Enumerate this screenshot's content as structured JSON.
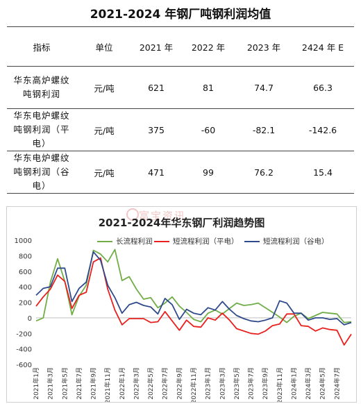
{
  "table": {
    "title": "2021-2024 年钢厂吨钢利润均值",
    "headers": [
      "指标",
      "单位",
      "2021 年",
      "2022 年",
      "2023 年",
      "2424 年 E"
    ],
    "rows": [
      {
        "label_line1": "华东高炉螺纹",
        "label_line2": "吨钢利润",
        "label_line3": "",
        "unit": "元/吨",
        "v2021": "621",
        "v2022": "81",
        "v2023": "74.7",
        "v2024": "66.3"
      },
      {
        "label_line1": "华东电炉螺纹",
        "label_line2": "吨钢利润（平",
        "label_line3": "电）",
        "unit": "元/吨",
        "v2021": "375",
        "v2022": "-60",
        "v2023": "-82.1",
        "v2024": "-142.6"
      },
      {
        "label_line1": "华东电炉螺纹",
        "label_line2": "吨钢利润（谷",
        "label_line3": "电）",
        "unit": "元/吨",
        "v2021": "471",
        "v2022": "99",
        "v2023": "76.2",
        "v2024": "15.4"
      }
    ]
  },
  "watermark": "富宝资讯",
  "chart_data": {
    "type": "line",
    "title": "2021-2024年华东钢厂利润趋势图",
    "xlabel": "",
    "ylabel": "",
    "ylim": [
      -600,
      1000
    ],
    "yticks": [
      1000,
      800,
      600,
      400,
      200,
      0,
      -200,
      -400,
      -600
    ],
    "x_tick_labels": [
      "2021年1月",
      "2021年3月",
      "2021年5月",
      "2021年7月",
      "2021年9月",
      "2021年11月",
      "2022年1月",
      "2022年3月",
      "2022年5月",
      "2022年7月",
      "2022年9月",
      "2022年11月",
      "2023年1月",
      "2023年3月",
      "2023年5月",
      "2023年7月",
      "2023年9月",
      "2023年11月",
      "2024年1月",
      "2024年3月",
      "2024年5月",
      "2024年7月"
    ],
    "legend_position": "top",
    "x_count": 45,
    "series": [
      {
        "name": "长流程利润",
        "color": "#70ad47",
        "values": [
          -40,
          0,
          460,
          760,
          470,
          40,
          280,
          420,
          870,
          820,
          720,
          880,
          480,
          530,
          370,
          240,
          260,
          130,
          190,
          270,
          150,
          70,
          -20,
          -50,
          60,
          100,
          50,
          120,
          190,
          160,
          170,
          190,
          130,
          70,
          10,
          -60,
          20,
          60,
          -10,
          30,
          70,
          60,
          50,
          -60,
          -50
        ]
      },
      {
        "name": "短流程利润（平电）",
        "color": "#e8201e",
        "values": [
          150,
          270,
          370,
          550,
          470,
          120,
          290,
          330,
          720,
          770,
          370,
          100,
          -90,
          -10,
          -10,
          -10,
          -60,
          -50,
          80,
          -40,
          -160,
          -30,
          -110,
          -120,
          0,
          -30,
          60,
          -30,
          -140,
          -170,
          -200,
          -210,
          -170,
          -100,
          -80,
          50,
          50,
          -100,
          -110,
          -170,
          -130,
          -150,
          -160,
          -350,
          -210
        ]
      },
      {
        "name": "短流程利润（谷电）",
        "color": "#2f4a8a",
        "values": [
          290,
          380,
          400,
          640,
          640,
          210,
          380,
          460,
          850,
          740,
          420,
          260,
          60,
          170,
          200,
          160,
          140,
          50,
          250,
          170,
          -20,
          110,
          60,
          40,
          130,
          100,
          210,
          110,
          30,
          -10,
          -40,
          -50,
          -30,
          0,
          220,
          190,
          60,
          60,
          -30,
          0,
          0,
          -20,
          -10,
          -90,
          -60
        ]
      }
    ]
  }
}
